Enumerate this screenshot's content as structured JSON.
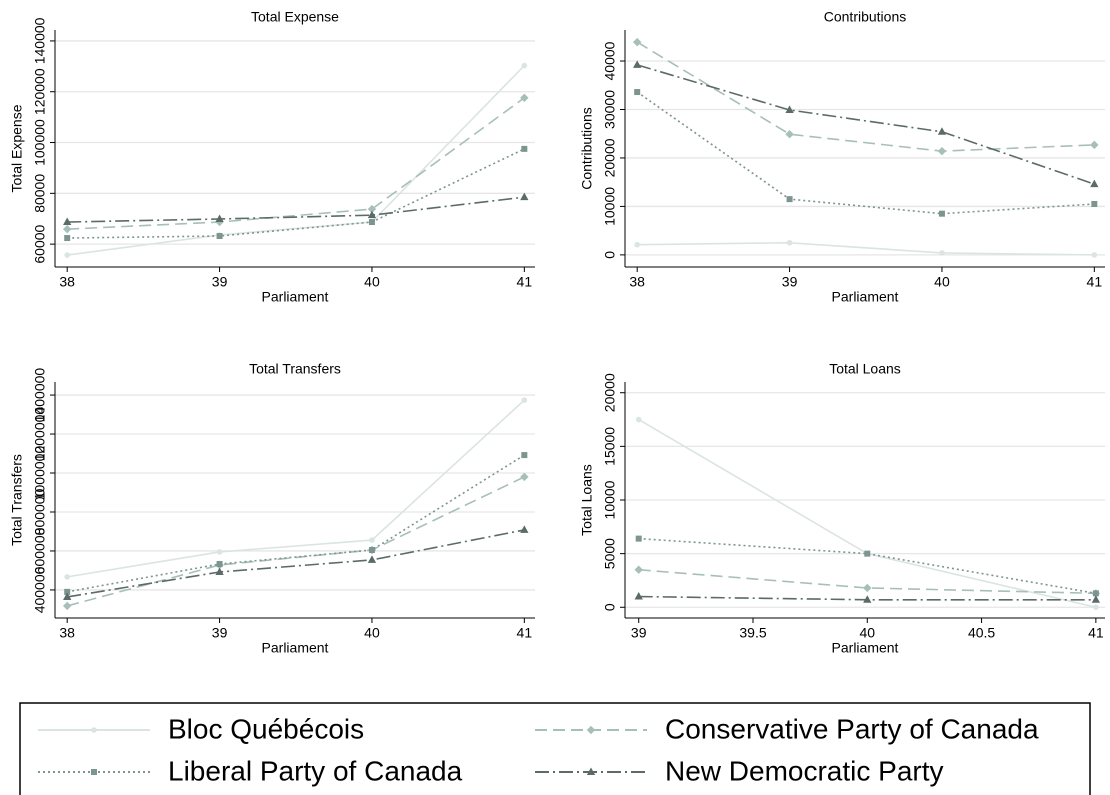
{
  "chart_data": [
    {
      "type": "line",
      "title": "Total Expense",
      "x_label": "Parliament",
      "y_label": "Total Expense",
      "x": [
        38,
        39,
        40,
        41
      ],
      "xlim": [
        37.92,
        41.07
      ],
      "xticks": [
        38,
        39,
        40,
        41
      ],
      "ylim": [
        51000,
        144300
      ],
      "yticks": [
        60000,
        80000,
        100000,
        120000,
        140000
      ],
      "grid": true,
      "series": [
        {
          "name": "Bloc Québécois",
          "color": "#dae4e1",
          "dash": "solid",
          "marker": "circle",
          "values": [
            55700,
            63600,
            68700,
            130300
          ]
        },
        {
          "name": "Conservative Party of Canada",
          "color": "#a7bfb9",
          "dash": "longdash",
          "marker": "diamond",
          "values": [
            65900,
            68700,
            73800,
            117600
          ]
        },
        {
          "name": "Liberal Party of Canada",
          "color": "#7d9590",
          "dash": "dot",
          "marker": "square",
          "values": [
            62400,
            63200,
            68700,
            97500
          ]
        },
        {
          "name": "New Democratic Party",
          "color": "#5b6b68",
          "dash": "dashdot",
          "marker": "triangle",
          "values": [
            68700,
            69900,
            71400,
            78500
          ]
        }
      ]
    },
    {
      "type": "line",
      "title": "Contributions",
      "x_label": "Parliament",
      "y_label": "Contributions",
      "x": [
        38,
        39,
        40,
        41
      ],
      "xlim": [
        37.92,
        41.07
      ],
      "xticks": [
        38,
        39,
        40,
        41
      ],
      "ylim": [
        -2500,
        46400
      ],
      "yticks": [
        0,
        10000,
        20000,
        30000,
        40000
      ],
      "grid": true,
      "series": [
        {
          "name": "Bloc Québécois",
          "color": "#dae4e1",
          "dash": "solid",
          "marker": "circle",
          "values": [
            2100,
            2500,
            400,
            0
          ]
        },
        {
          "name": "Conservative Party of Canada",
          "color": "#a7bfb9",
          "dash": "longdash",
          "marker": "diamond",
          "values": [
            43900,
            24900,
            21400,
            22700
          ]
        },
        {
          "name": "Liberal Party of Canada",
          "color": "#7d9590",
          "dash": "dot",
          "marker": "square",
          "values": [
            33600,
            11500,
            8500,
            10500
          ]
        },
        {
          "name": "New Democratic Party",
          "color": "#5b6b68",
          "dash": "dashdot",
          "marker": "triangle",
          "values": [
            39200,
            29900,
            25400,
            14600
          ]
        }
      ]
    },
    {
      "type": "line",
      "title": "Total Transfers",
      "x_label": "Parliament",
      "y_label": "Total Transfers",
      "x": [
        38,
        39,
        40,
        41
      ],
      "xlim": [
        37.92,
        41.07
      ],
      "xticks": [
        38,
        39,
        40,
        41
      ],
      "ylim": [
        256000,
        1467000
      ],
      "yticks": [
        400000,
        600000,
        800000,
        1000000,
        1200000,
        1400000
      ],
      "grid": true,
      "series": [
        {
          "name": "Bloc Québécois",
          "color": "#dae4e1",
          "dash": "solid",
          "marker": "circle",
          "values": [
            467000,
            595000,
            656000,
            1374000
          ]
        },
        {
          "name": "Conservative Party of Canada",
          "color": "#a7bfb9",
          "dash": "longdash",
          "marker": "diamond",
          "values": [
            318000,
            528000,
            605000,
            980000
          ]
        },
        {
          "name": "Liberal Party of Canada",
          "color": "#7d9590",
          "dash": "dot",
          "marker": "square",
          "values": [
            390000,
            533000,
            605000,
            1092000
          ]
        },
        {
          "name": "New Democratic Party",
          "color": "#5b6b68",
          "dash": "dashdot",
          "marker": "triangle",
          "values": [
            364000,
            492000,
            554000,
            708000
          ]
        }
      ]
    },
    {
      "type": "line",
      "title": "Total Loans",
      "x_label": "Parliament",
      "y_label": "Total Loans",
      "x": [
        39,
        40,
        41
      ],
      "xlim": [
        38.94,
        41.04
      ],
      "xticks": [
        39,
        39.5,
        40,
        40.5,
        41
      ],
      "ylim": [
        -1000,
        21000
      ],
      "yticks": [
        0,
        5000,
        10000,
        15000,
        20000
      ],
      "grid": true,
      "series": [
        {
          "name": "Bloc Québécois",
          "color": "#dae4e1",
          "dash": "solid",
          "marker": "circle",
          "values": [
            17500,
            5000,
            0
          ]
        },
        {
          "name": "Conservative Party of Canada",
          "color": "#a7bfb9",
          "dash": "longdash",
          "marker": "diamond",
          "values": [
            3500,
            1800,
            1300
          ]
        },
        {
          "name": "Liberal Party of Canada",
          "color": "#7d9590",
          "dash": "dot",
          "marker": "square",
          "values": [
            6400,
            5000,
            1300
          ]
        },
        {
          "name": "New Democratic Party",
          "color": "#5b6b68",
          "dash": "dashdot",
          "marker": "triangle",
          "values": [
            1000,
            700,
            700
          ]
        }
      ]
    }
  ]
}
